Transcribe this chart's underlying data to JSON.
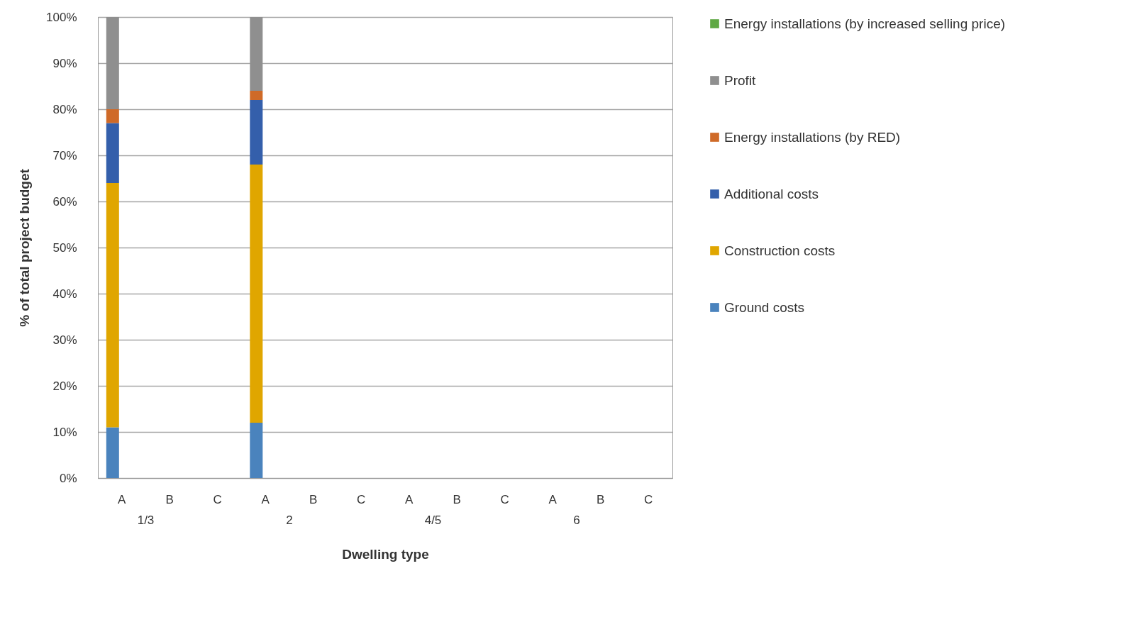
{
  "chart_data": {
    "type": "bar",
    "stacked": true,
    "xlabel": "Dwelling type",
    "ylabel": "% of total project budget",
    "categories": [
      "A",
      "B",
      "C",
      "A",
      "B",
      "C",
      "A",
      "B",
      "C",
      "A",
      "B",
      "C"
    ],
    "annotations": [
      "1/3",
      "2",
      "4/5",
      "6"
    ],
    "ylim": [
      0,
      100
    ],
    "yticks": [
      {
        "value": 0,
        "label": "0%"
      },
      {
        "value": 10,
        "label": "10%"
      },
      {
        "value": 20,
        "label": "20%"
      },
      {
        "value": 30,
        "label": "30%"
      },
      {
        "value": 40,
        "label": "40%"
      },
      {
        "value": 50,
        "label": "50%"
      },
      {
        "value": 60,
        "label": "60%"
      },
      {
        "value": 70,
        "label": "70%"
      },
      {
        "value": 80,
        "label": "80%"
      },
      {
        "value": 90,
        "label": "90%"
      },
      {
        "value": 100,
        "label": "100%"
      }
    ],
    "grid": "y",
    "legend": "right",
    "series": [
      {
        "name": "Ground costs",
        "color": "#4a83bd",
        "values": [
          11,
          null,
          null,
          12,
          null,
          null,
          null,
          null,
          null,
          null,
          null,
          null
        ]
      },
      {
        "name": "Construction costs",
        "color": "#e0a600",
        "values": [
          53,
          null,
          null,
          56,
          null,
          null,
          null,
          null,
          null,
          null,
          null,
          null
        ]
      },
      {
        "name": "Additional costs",
        "color": "#345fab",
        "values": [
          13,
          null,
          null,
          14,
          null,
          null,
          null,
          null,
          null,
          null,
          null,
          null
        ]
      },
      {
        "name": "Energy installations (by RED)",
        "color": "#cf6a28",
        "values": [
          3,
          null,
          null,
          2,
          null,
          null,
          null,
          null,
          null,
          null,
          null,
          null
        ]
      },
      {
        "name": "Profit",
        "color": "#8f8f8f",
        "values": [
          20,
          null,
          null,
          16,
          null,
          null,
          null,
          null,
          null,
          null,
          null,
          null
        ]
      },
      {
        "name": "Energy installations (by increased selling price)",
        "color": "#5ea843",
        "values": [
          null,
          null,
          null,
          null,
          null,
          null,
          null,
          null,
          null,
          null,
          null,
          null
        ]
      }
    ]
  }
}
